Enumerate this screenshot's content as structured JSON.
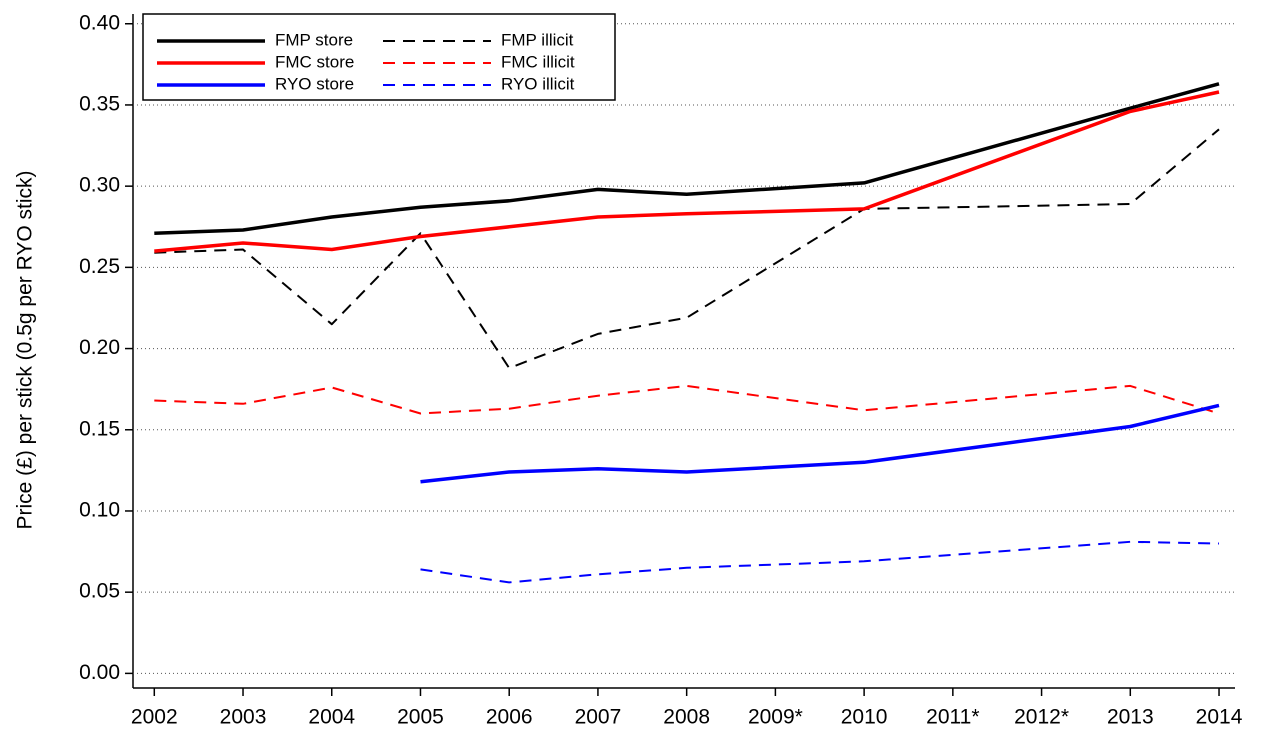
{
  "chart_data": {
    "type": "line",
    "y_label": "Price (£) per stick (0.5g per RYO stick)",
    "x": [
      2002,
      2003,
      2004,
      2005,
      2006,
      2007,
      2008,
      2010,
      2013,
      2014
    ],
    "xlim": [
      2001.76,
      2014.18
    ],
    "xticks": [
      2002,
      2003,
      2004,
      2005,
      2006,
      2007,
      2008,
      {
        "value": 2009,
        "label": "2009*"
      },
      2010,
      {
        "value": 2011,
        "label": "2011*"
      },
      {
        "value": 2012,
        "label": "2012*"
      },
      2013,
      2014
    ],
    "ylim": [
      -0.009,
      0.406
    ],
    "yticks": [
      {
        "value": 0,
        "label": "0.00"
      },
      {
        "value": 0.05,
        "label": "0.05"
      },
      {
        "value": 0.1,
        "label": "0.10"
      },
      {
        "value": 0.15,
        "label": "0.15"
      },
      {
        "value": 0.2,
        "label": "0.20"
      },
      {
        "value": 0.25,
        "label": "0.25"
      },
      {
        "value": 0.3,
        "label": "0.30"
      },
      {
        "value": 0.35,
        "label": "0.35"
      },
      {
        "value": 0.4,
        "label": "0.40"
      }
    ],
    "grid": true,
    "legend": "top-left",
    "series": [
      {
        "name": "FMP store",
        "color": "#000000",
        "dashed": false,
        "values": [
          0.271,
          0.273,
          0.281,
          0.287,
          0.291,
          0.298,
          0.295,
          0.302,
          0.348,
          0.363
        ]
      },
      {
        "name": "FMP illicit",
        "color": "#000000",
        "dashed": true,
        "values": [
          0.259,
          0.261,
          0.215,
          0.271,
          0.188,
          0.209,
          0.219,
          0.286,
          0.289,
          0.335
        ]
      },
      {
        "name": "FMC store",
        "color": "#ff0000",
        "dashed": false,
        "values": [
          0.26,
          0.265,
          0.261,
          0.269,
          0.275,
          0.281,
          0.283,
          0.286,
          0.346,
          0.358
        ]
      },
      {
        "name": "FMC illicit",
        "color": "#ff0000",
        "dashed": true,
        "values": [
          0.168,
          0.166,
          0.176,
          0.16,
          0.163,
          0.171,
          0.177,
          0.162,
          0.177,
          0.16
        ]
      },
      {
        "name": "RYO store",
        "color": "#0000ff",
        "dashed": false,
        "values": [
          null,
          null,
          null,
          0.118,
          0.124,
          0.126,
          0.124,
          0.13,
          0.152,
          0.165
        ]
      },
      {
        "name": "RYO illicit",
        "color": "#0000ff",
        "dashed": true,
        "values": [
          null,
          null,
          null,
          0.064,
          0.056,
          0.061,
          0.065,
          0.069,
          0.081,
          0.08
        ]
      }
    ]
  }
}
